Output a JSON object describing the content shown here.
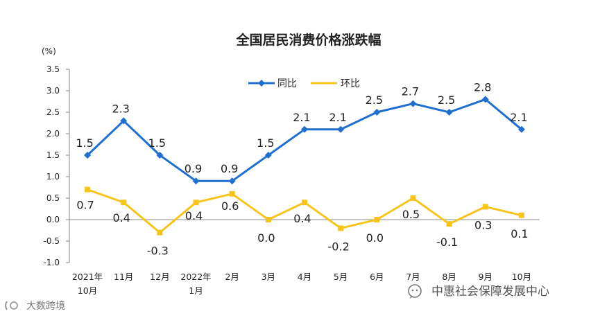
{
  "chart_data": {
    "type": "line",
    "title": "全国居民消费价格涨跌幅",
    "unit_label": "(%)",
    "categories": [
      [
        "2021年",
        "10月"
      ],
      [
        "11月"
      ],
      [
        "12月"
      ],
      [
        "2022年",
        "1月"
      ],
      [
        "2月"
      ],
      [
        "3月"
      ],
      [
        "4月"
      ],
      [
        "5月"
      ],
      [
        "6月"
      ],
      [
        "7月"
      ],
      [
        "8月"
      ],
      [
        "9月"
      ],
      [
        "10月"
      ]
    ],
    "ylim": [
      -1.0,
      3.5
    ],
    "yticks": [
      "3.5",
      "3.0",
      "2.5",
      "2.0",
      "1.5",
      "1.0",
      "0.5",
      "0.0",
      "-0.5",
      "-1.0"
    ],
    "grid": false,
    "legend_position": "top-center",
    "series": [
      {
        "name": "同比",
        "color": "#1f6fd1",
        "marker": "diamond",
        "values": [
          1.5,
          2.3,
          1.5,
          0.9,
          0.9,
          1.5,
          2.1,
          2.1,
          2.5,
          2.7,
          2.5,
          2.8,
          2.1
        ],
        "labels": [
          "1.5",
          "2.3",
          "1.5",
          "0.9",
          "0.9",
          "1.5",
          "2.1",
          "2.1",
          "2.5",
          "2.7",
          "2.5",
          "2.8",
          "2.1"
        ]
      },
      {
        "name": "环比",
        "color": "#f7c51a",
        "marker": "square",
        "values": [
          0.7,
          0.4,
          -0.3,
          0.4,
          0.6,
          0.0,
          0.4,
          -0.2,
          0.0,
          0.5,
          -0.1,
          0.3,
          0.1
        ],
        "labels": [
          "0.7",
          "0.4",
          "-0.3",
          "0.4",
          "0.6",
          "0.0",
          "0.4",
          "-0.2",
          "0.0",
          "0.5",
          "-0.1",
          "0.3",
          "0.1"
        ]
      }
    ]
  },
  "watermark": {
    "right_text": "中惠社会保障发展中心",
    "left_text": "大数跨境"
  }
}
